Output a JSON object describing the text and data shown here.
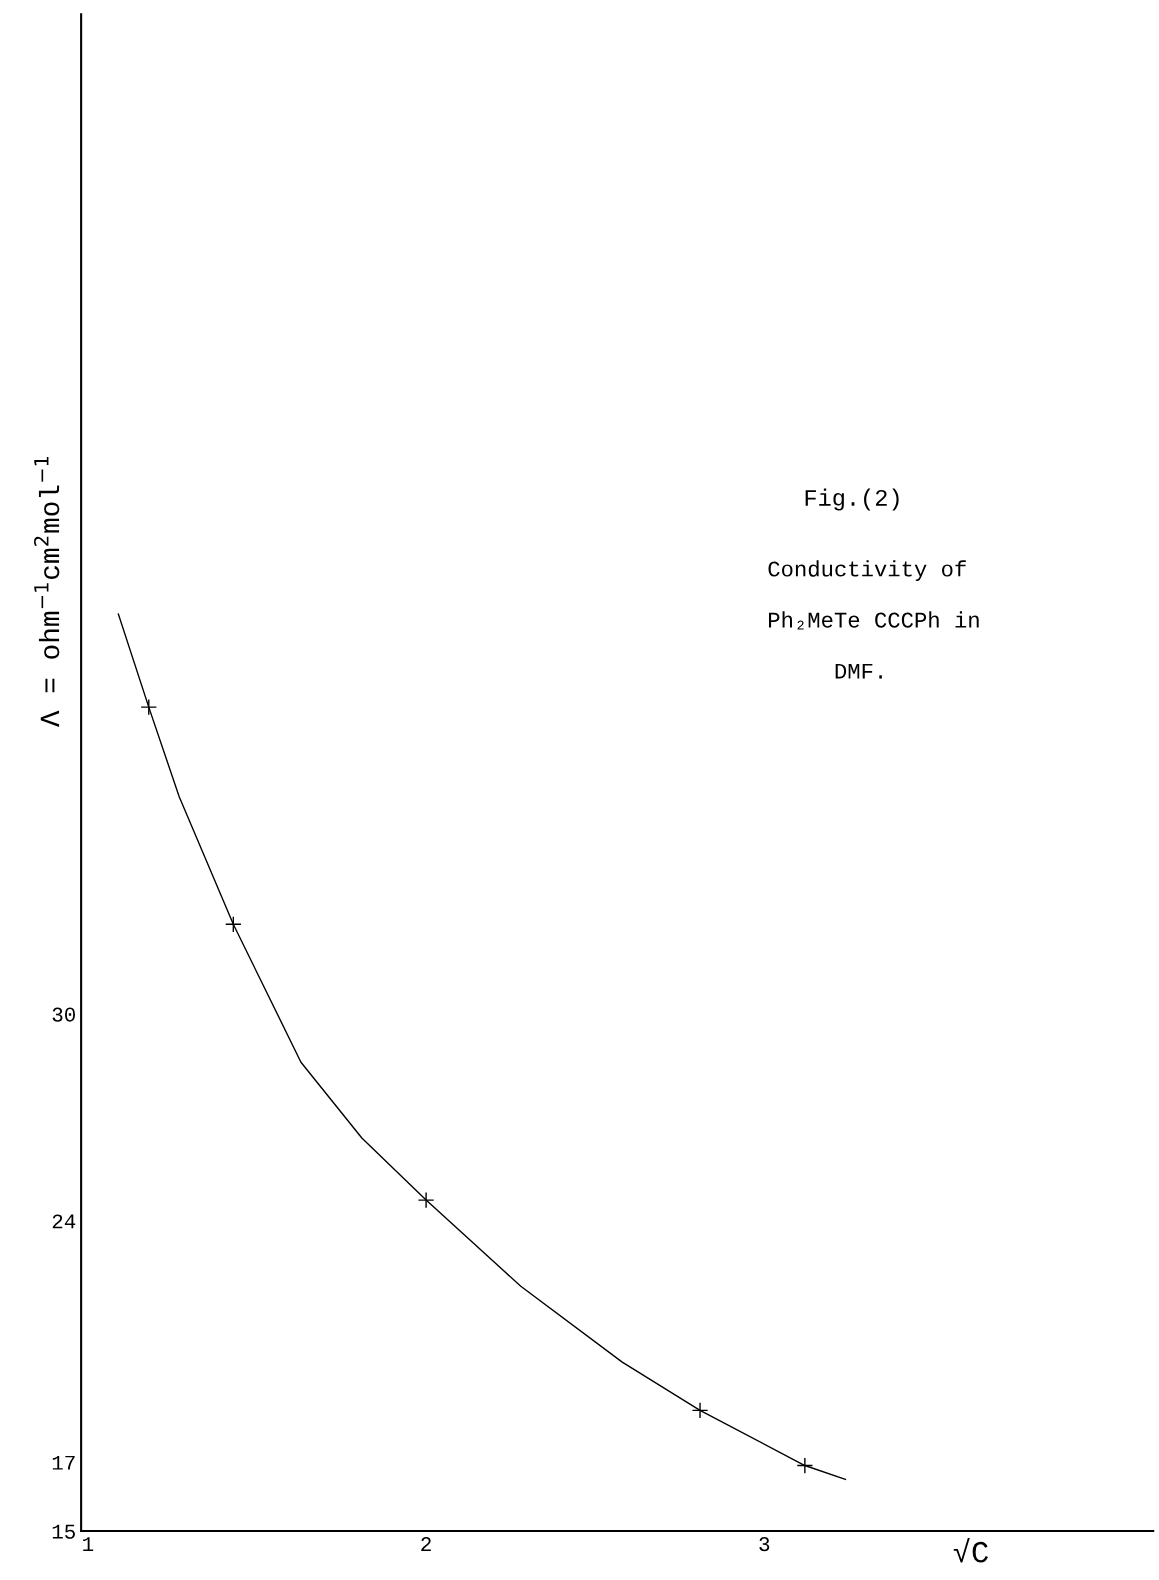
{
  "chart_data": {
    "type": "scatter",
    "title": "Fig.(2)",
    "xlabel": "√C",
    "ylabel": "Λ = ohm$^{−1}$cm$^{2}$mol$^{−1}$",
    "annotations": [
      "Conductivity of\n\nPh₂MeTe CCCPh in\n\n     DMF."
    ],
    "series": [
      {
        "color": "#000000",
        "marker": "cross",
        "x": [
          1.18,
          1.43,
          2.0,
          2.81,
          3.12
        ],
        "values": [
          38.9,
          32.6,
          24.6,
          18.5,
          16.9
        ]
      },
      {
        "type": "line",
        "color": "#000000",
        "marker": "none",
        "x": [
          1.09,
          1.18,
          1.27,
          1.43,
          1.63,
          1.81,
          2.0,
          2.28,
          2.58,
          2.81,
          3.12,
          3.24
        ],
        "values": [
          41.6,
          38.9,
          36.3,
          32.6,
          28.6,
          26.4,
          24.6,
          22.1,
          19.9,
          18.5,
          16.9,
          16.5
        ]
      }
    ],
    "xlim": [
      0.98,
      4.15
    ],
    "ylim": [
      15,
      59
    ],
    "xticks": [
      1,
      2,
      3
    ],
    "yticks": [
      15,
      17,
      24,
      30
    ],
    "grid": false,
    "legend": false
  }
}
